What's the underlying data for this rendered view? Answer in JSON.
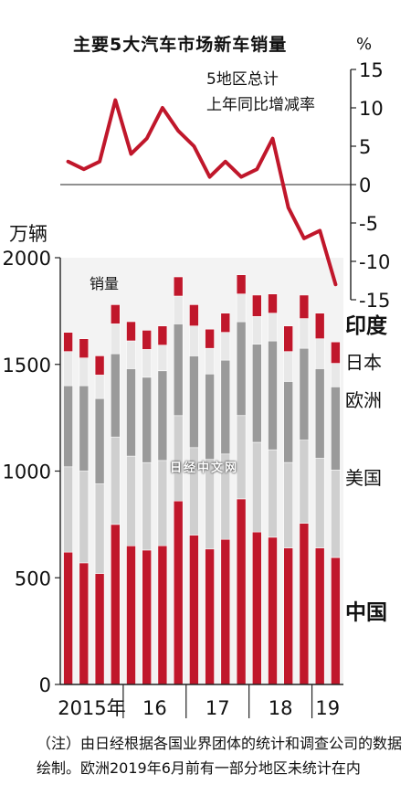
{
  "title": "主要5大汽车市场新车销量",
  "line_unit": "%",
  "line_label": [
    "5地区总计",
    "上年同比增减率"
  ],
  "bar_unit": "万辆",
  "bar_label": "销量",
  "watermark": "日经中文网",
  "note": "（注）由日经根据各国业界团体的统计和调查公司的数据绘制。欧洲2019年6月前有一部分地区未统计在内",
  "chart_data": [
    {
      "type": "bar",
      "stacked": true,
      "ylabel": "万辆",
      "ylim": [
        0,
        2000
      ],
      "yticks": [
        0,
        500,
        1000,
        1500,
        2000
      ],
      "x_group_labels": [
        {
          "label": "2015年",
          "from": 0,
          "to": 3
        },
        {
          "label": "16",
          "from": 4,
          "to": 7
        },
        {
          "label": "17",
          "from": 8,
          "to": 11
        },
        {
          "label": "18",
          "from": 12,
          "to": 15
        },
        {
          "label": "19",
          "from": 16,
          "to": 17
        }
      ],
      "n_bars": 18,
      "series": [
        {
          "name": "中国",
          "color": "#c0172b",
          "label_bold": true,
          "values": [
            620,
            570,
            520,
            750,
            650,
            630,
            650,
            860,
            700,
            635,
            680,
            870,
            715,
            690,
            640,
            755,
            640,
            595
          ]
        },
        {
          "name": "美国",
          "color": "#cfcfcf",
          "label_bold": false,
          "values": [
            400,
            430,
            420,
            410,
            420,
            410,
            400,
            400,
            410,
            420,
            400,
            390,
            420,
            410,
            400,
            390,
            420,
            410
          ]
        },
        {
          "name": "欧洲",
          "color": "#9a9a9a",
          "label_bold": false,
          "values": [
            380,
            400,
            400,
            390,
            410,
            400,
            420,
            430,
            430,
            400,
            440,
            440,
            460,
            510,
            380,
            430,
            420,
            390
          ]
        },
        {
          "name": "日本",
          "color": "#e8e8e8",
          "label_bold": false,
          "values": [
            160,
            130,
            110,
            140,
            130,
            130,
            120,
            130,
            140,
            120,
            130,
            130,
            130,
            130,
            140,
            140,
            140,
            110
          ]
        },
        {
          "name": "印度",
          "color": "#c0172b",
          "label_bold": true,
          "values": [
            90,
            90,
            90,
            90,
            90,
            90,
            90,
            90,
            100,
            90,
            90,
            90,
            100,
            90,
            120,
            110,
            120,
            100
          ]
        }
      ]
    },
    {
      "type": "line",
      "color": "#c0172b",
      "ylabel": "%",
      "ylim": [
        -15,
        15
      ],
      "yticks": [
        15,
        10,
        5,
        0,
        -5,
        -10,
        -15
      ],
      "values": [
        3,
        2,
        3,
        11,
        4,
        6,
        10,
        7,
        5,
        1,
        3,
        1,
        2,
        6,
        -3,
        -7,
        -6,
        -13
      ]
    }
  ]
}
